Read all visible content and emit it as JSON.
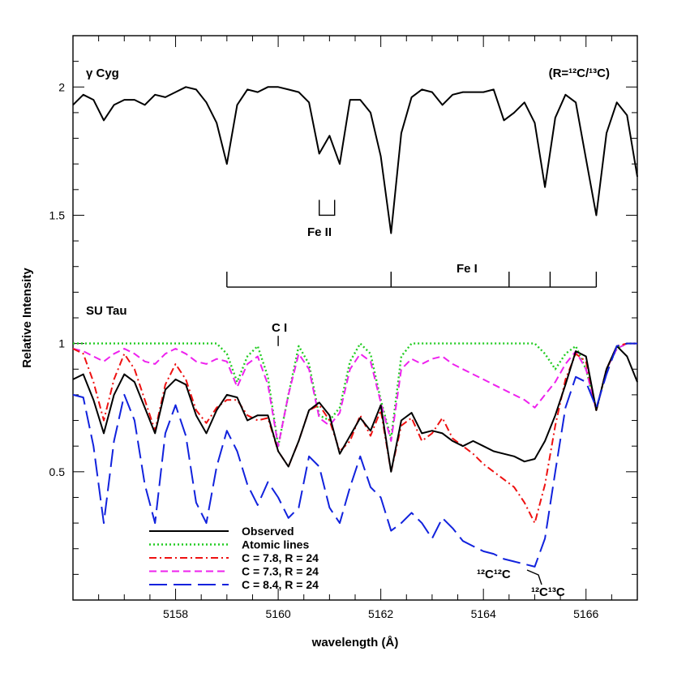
{
  "chart_data": {
    "type": "line",
    "xlabel": "wavelength (Å)",
    "ylabel": "Relative Intensity",
    "xlim": [
      5156,
      5167
    ],
    "ylim": [
      0,
      2.2
    ],
    "xticks": [
      5158,
      5160,
      5162,
      5164,
      5166
    ],
    "yticks": [
      0.5,
      1,
      1.5,
      2
    ],
    "ytick_labels": [
      "0.5",
      "1",
      "1.5",
      "2"
    ],
    "grid": false,
    "legend_position": "bottom-left",
    "annotations": {
      "star_top": "γ Cyg",
      "ratio_note": "(R=¹²C/¹³C)",
      "fe2": "Fe II",
      "fe1": "Fe I",
      "star_bottom": "SU Tau",
      "c1": "C I",
      "c12c12": "¹²C¹²C",
      "c12c13": "¹²C¹³C"
    },
    "line_markers": {
      "fe1": [
        5159.0,
        5162.2,
        5164.5,
        5165.3,
        5166.2
      ],
      "fe2": [
        5160.8,
        5161.1
      ],
      "c1": 5160.0
    },
    "series": [
      {
        "name": "γ Cyg",
        "color": "#000000",
        "dash": "solid",
        "legend": false,
        "x": [
          5156,
          5156.2,
          5156.4,
          5156.6,
          5156.8,
          5157,
          5157.2,
          5157.4,
          5157.6,
          5157.8,
          5158,
          5158.2,
          5158.4,
          5158.6,
          5158.8,
          5159,
          5159.2,
          5159.4,
          5159.6,
          5159.8,
          5160,
          5160.2,
          5160.4,
          5160.6,
          5160.8,
          5161,
          5161.2,
          5161.4,
          5161.6,
          5161.8,
          5162,
          5162.2,
          5162.4,
          5162.6,
          5162.8,
          5163,
          5163.2,
          5163.4,
          5163.6,
          5163.8,
          5164,
          5164.2,
          5164.4,
          5164.6,
          5164.8,
          5165,
          5165.2,
          5165.4,
          5165.6,
          5165.8,
          5166,
          5166.2,
          5166.4,
          5166.6,
          5166.8,
          5167
        ],
        "y": [
          1.93,
          1.97,
          1.95,
          1.87,
          1.93,
          1.95,
          1.95,
          1.93,
          1.97,
          1.96,
          1.98,
          2.0,
          1.99,
          1.94,
          1.86,
          1.7,
          1.93,
          1.99,
          1.98,
          2.0,
          2.0,
          1.99,
          1.98,
          1.94,
          1.74,
          1.81,
          1.7,
          1.95,
          1.95,
          1.9,
          1.73,
          1.43,
          1.82,
          1.96,
          1.99,
          1.98,
          1.93,
          1.97,
          1.98,
          1.98,
          1.98,
          1.99,
          1.87,
          1.9,
          1.94,
          1.86,
          1.61,
          1.88,
          1.97,
          1.94,
          1.72,
          1.5,
          1.82,
          1.94,
          1.89,
          1.65
        ]
      },
      {
        "name": "Observed",
        "color": "#000000",
        "dash": "solid",
        "legend": true,
        "x": [
          5156,
          5156.2,
          5156.4,
          5156.6,
          5156.8,
          5157,
          5157.2,
          5157.4,
          5157.6,
          5157.8,
          5158,
          5158.2,
          5158.4,
          5158.6,
          5158.8,
          5159,
          5159.2,
          5159.4,
          5159.6,
          5159.8,
          5160,
          5160.2,
          5160.4,
          5160.6,
          5160.8,
          5161,
          5161.2,
          5161.4,
          5161.6,
          5161.8,
          5162,
          5162.2,
          5162.4,
          5162.6,
          5162.8,
          5163,
          5163.2,
          5163.4,
          5163.6,
          5163.8,
          5164,
          5164.2,
          5164.4,
          5164.6,
          5164.8,
          5165,
          5165.2,
          5165.4,
          5165.6,
          5165.8,
          5166,
          5166.2,
          5166.4,
          5166.6,
          5166.8,
          5167
        ],
        "y": [
          0.86,
          0.88,
          0.78,
          0.65,
          0.8,
          0.88,
          0.85,
          0.75,
          0.65,
          0.82,
          0.86,
          0.84,
          0.72,
          0.65,
          0.74,
          0.8,
          0.79,
          0.7,
          0.72,
          0.72,
          0.58,
          0.52,
          0.62,
          0.74,
          0.77,
          0.72,
          0.57,
          0.64,
          0.71,
          0.66,
          0.76,
          0.5,
          0.7,
          0.73,
          0.65,
          0.66,
          0.65,
          0.62,
          0.6,
          0.62,
          0.6,
          0.58,
          0.57,
          0.56,
          0.54,
          0.55,
          0.62,
          0.72,
          0.84,
          0.97,
          0.95,
          0.74,
          0.9,
          0.99,
          0.95,
          0.85
        ]
      },
      {
        "name": "Atomic lines",
        "color": "#22cc22",
        "dash": "dotted",
        "legend": true,
        "x": [
          5156,
          5156.2,
          5156.4,
          5156.6,
          5156.8,
          5157,
          5157.2,
          5157.4,
          5157.6,
          5157.8,
          5158,
          5158.2,
          5158.4,
          5158.6,
          5158.8,
          5159,
          5159.2,
          5159.4,
          5159.6,
          5159.8,
          5160,
          5160.2,
          5160.4,
          5160.6,
          5160.8,
          5161,
          5161.2,
          5161.4,
          5161.6,
          5161.8,
          5162,
          5162.2,
          5162.4,
          5162.6,
          5162.8,
          5163,
          5163.2,
          5163.4,
          5163.6,
          5163.8,
          5164,
          5164.2,
          5164.4,
          5164.6,
          5164.8,
          5165,
          5165.2,
          5165.4,
          5165.6,
          5165.8,
          5166,
          5166.2,
          5166.4,
          5166.6,
          5166.8,
          5167
        ],
        "y": [
          1.0,
          1.0,
          1.0,
          1.0,
          1.0,
          1.0,
          1.0,
          1.0,
          1.0,
          1.0,
          1.0,
          1.0,
          1.0,
          1.0,
          1.0,
          0.96,
          0.85,
          0.95,
          0.99,
          0.87,
          0.6,
          0.8,
          0.99,
          0.92,
          0.72,
          0.7,
          0.75,
          0.93,
          1.0,
          0.96,
          0.78,
          0.63,
          0.95,
          1.0,
          1.0,
          1.0,
          1.0,
          1.0,
          1.0,
          1.0,
          1.0,
          1.0,
          1.0,
          1.0,
          1.0,
          1.0,
          0.96,
          0.9,
          0.96,
          0.99,
          0.9,
          0.74,
          0.9,
          0.98,
          1.0,
          1.0
        ]
      },
      {
        "name": "C = 7.8,  R = 24",
        "color": "#ee1111",
        "dash": "dashdot",
        "legend": true,
        "x": [
          5156,
          5156.2,
          5156.4,
          5156.6,
          5156.8,
          5157,
          5157.2,
          5157.4,
          5157.6,
          5157.8,
          5158,
          5158.2,
          5158.4,
          5158.6,
          5158.8,
          5159,
          5159.2,
          5159.4,
          5159.6,
          5159.8,
          5160,
          5160.2,
          5160.4,
          5160.6,
          5160.8,
          5161,
          5161.2,
          5161.4,
          5161.6,
          5161.8,
          5162,
          5162.2,
          5162.4,
          5162.6,
          5162.8,
          5163,
          5163.2,
          5163.4,
          5163.6,
          5163.8,
          5164,
          5164.2,
          5164.4,
          5164.6,
          5164.8,
          5165,
          5165.2,
          5165.4,
          5165.6,
          5165.8,
          5166,
          5166.2,
          5166.4,
          5166.6,
          5166.8,
          5167
        ],
        "y": [
          0.98,
          0.96,
          0.85,
          0.7,
          0.86,
          0.96,
          0.9,
          0.78,
          0.66,
          0.84,
          0.92,
          0.86,
          0.74,
          0.69,
          0.75,
          0.78,
          0.78,
          0.72,
          0.7,
          0.71,
          0.58,
          0.52,
          0.62,
          0.74,
          0.76,
          0.7,
          0.58,
          0.62,
          0.72,
          0.64,
          0.74,
          0.5,
          0.68,
          0.71,
          0.62,
          0.65,
          0.71,
          0.63,
          0.6,
          0.57,
          0.53,
          0.5,
          0.47,
          0.44,
          0.38,
          0.3,
          0.45,
          0.68,
          0.86,
          0.96,
          0.93,
          0.74,
          0.9,
          0.99,
          1.0,
          1.0
        ]
      },
      {
        "name": "C = 7.3,  R = 24",
        "color": "#ee22ee",
        "dash": "dashed",
        "legend": true,
        "x": [
          5156,
          5156.2,
          5156.4,
          5156.6,
          5156.8,
          5157,
          5157.2,
          5157.4,
          5157.6,
          5157.8,
          5158,
          5158.2,
          5158.4,
          5158.6,
          5158.8,
          5159,
          5159.2,
          5159.4,
          5159.6,
          5159.8,
          5160,
          5160.2,
          5160.4,
          5160.6,
          5160.8,
          5161,
          5161.2,
          5161.4,
          5161.6,
          5161.8,
          5162,
          5162.2,
          5162.4,
          5162.6,
          5162.8,
          5163,
          5163.2,
          5163.4,
          5163.6,
          5163.8,
          5164,
          5164.2,
          5164.4,
          5164.6,
          5164.8,
          5165,
          5165.2,
          5165.4,
          5165.6,
          5165.8,
          5166,
          5166.2,
          5166.4,
          5166.6,
          5166.8,
          5167
        ],
        "y": [
          0.98,
          0.97,
          0.95,
          0.93,
          0.96,
          0.98,
          0.96,
          0.93,
          0.92,
          0.96,
          0.98,
          0.96,
          0.93,
          0.92,
          0.94,
          0.93,
          0.83,
          0.92,
          0.95,
          0.84,
          0.6,
          0.8,
          0.96,
          0.9,
          0.71,
          0.68,
          0.73,
          0.9,
          0.96,
          0.93,
          0.77,
          0.62,
          0.9,
          0.94,
          0.92,
          0.94,
          0.95,
          0.92,
          0.9,
          0.88,
          0.86,
          0.84,
          0.82,
          0.8,
          0.78,
          0.75,
          0.8,
          0.85,
          0.92,
          0.97,
          0.9,
          0.74,
          0.9,
          0.98,
          1.0,
          1.0
        ]
      },
      {
        "name": "C = 8.4,  R = 24",
        "color": "#1122dd",
        "dash": "longdash",
        "legend": true,
        "x": [
          5156,
          5156.2,
          5156.4,
          5156.6,
          5156.8,
          5157,
          5157.2,
          5157.4,
          5157.6,
          5157.8,
          5158,
          5158.2,
          5158.4,
          5158.6,
          5158.8,
          5159,
          5159.2,
          5159.4,
          5159.6,
          5159.8,
          5160,
          5160.2,
          5160.4,
          5160.6,
          5160.8,
          5161,
          5161.2,
          5161.4,
          5161.6,
          5161.8,
          5162,
          5162.2,
          5162.4,
          5162.6,
          5162.8,
          5163,
          5163.2,
          5163.4,
          5163.6,
          5163.8,
          5164,
          5164.2,
          5164.4,
          5164.6,
          5164.8,
          5165,
          5165.2,
          5165.4,
          5165.6,
          5165.8,
          5166,
          5166.2,
          5166.4,
          5166.6,
          5166.8,
          5167
        ],
        "y": [
          0.8,
          0.79,
          0.6,
          0.3,
          0.62,
          0.8,
          0.7,
          0.45,
          0.3,
          0.65,
          0.76,
          0.64,
          0.38,
          0.3,
          0.52,
          0.66,
          0.58,
          0.45,
          0.37,
          0.46,
          0.4,
          0.32,
          0.36,
          0.56,
          0.52,
          0.36,
          0.3,
          0.44,
          0.56,
          0.44,
          0.4,
          0.27,
          0.3,
          0.34,
          0.3,
          0.24,
          0.32,
          0.28,
          0.23,
          0.21,
          0.19,
          0.18,
          0.16,
          0.15,
          0.14,
          0.13,
          0.24,
          0.5,
          0.75,
          0.87,
          0.85,
          0.75,
          0.88,
          0.99,
          1.0,
          1.0
        ]
      }
    ]
  }
}
